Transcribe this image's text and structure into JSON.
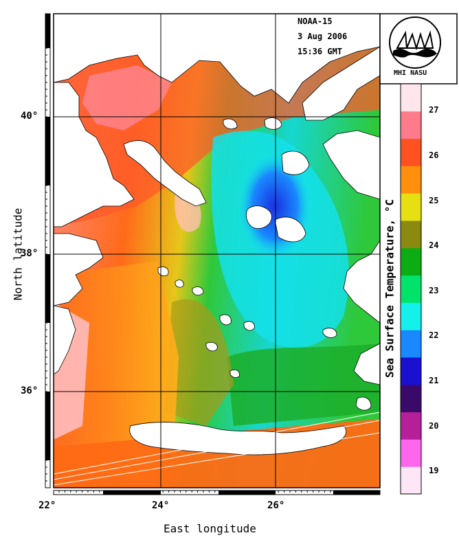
{
  "satellite": "NOAA-15",
  "date": "3 Aug 2006",
  "time": "15:36 GMT",
  "logo": {
    "text": "MHI NASU",
    "icon": "mhi-emblem-icon"
  },
  "map": {
    "latitude_ticks": [
      "40°",
      "38°",
      "36°"
    ],
    "longitude_ticks": [
      "22°",
      "24°",
      "26°"
    ],
    "x_axis_title": "East longitude",
    "y_axis_title": "North latitude"
  },
  "colorbar": {
    "title": "Sea Surface Temperature, °C",
    "labels": [
      "27",
      "26",
      "25",
      "24",
      "23",
      "22",
      "21",
      "20",
      "19"
    ],
    "range": [
      18.5,
      27.6
    ],
    "colors": [
      "#ffe6f6",
      "#ff66ee",
      "#b51f9a",
      "#3a0a6a",
      "#1a10d0",
      "#1a88ff",
      "#14f0ea",
      "#00e36a",
      "#0cac14",
      "#8a8a10",
      "#e6e012",
      "#ff8f0c",
      "#ff5220",
      "#ff7a8a",
      "#ffe6ec"
    ]
  }
}
